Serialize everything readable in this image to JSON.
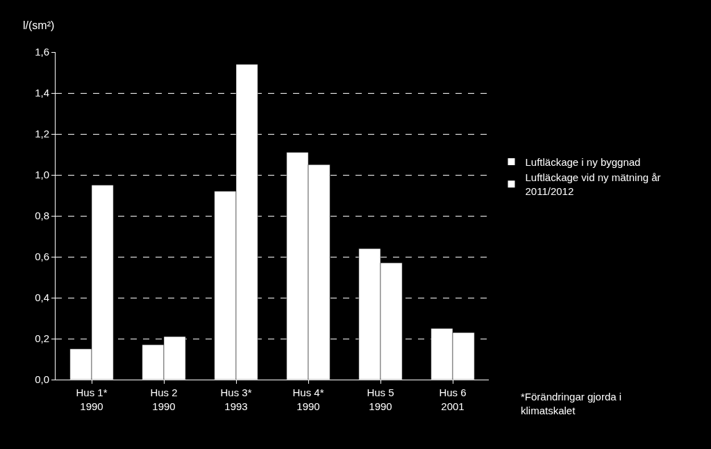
{
  "chart_data": {
    "type": "bar",
    "ylabel": "l/(sm²)",
    "categories": [
      "Hus 1*\n1990",
      "Hus 2\n1990",
      "Hus 3*\n1993",
      "Hus 4*\n1990",
      "Hus 5\n1990",
      "Hus 6\n2001"
    ],
    "series": [
      {
        "name": "Luftläckage i ny byggnad",
        "color": "#ffffff",
        "values": [
          0.15,
          0.17,
          0.92,
          1.11,
          0.64,
          0.25
        ]
      },
      {
        "name": "Luftläckage vid ny mätning år\n2011/2012",
        "color": "#ffffff",
        "values": [
          0.95,
          0.21,
          1.54,
          1.05,
          0.57,
          0.23
        ]
      }
    ],
    "ylim": [
      0,
      1.6
    ],
    "yticks": [
      {
        "value": 0,
        "label": "0,0"
      },
      {
        "value": 0.2,
        "label": "0,2"
      },
      {
        "value": 0.4,
        "label": "0,4"
      },
      {
        "value": 0.6,
        "label": "0,6"
      },
      {
        "value": 0.8,
        "label": "0,8"
      },
      {
        "value": 1,
        "label": "1,0"
      },
      {
        "value": 1.2,
        "label": "1,2"
      },
      {
        "value": 1.4,
        "label": "1,4"
      },
      {
        "value": 1.6,
        "label": "1,6"
      }
    ],
    "grid": "y",
    "legend": "right",
    "annotations": [
      "*Förändringar gjorda i\nklimatskalet"
    ]
  }
}
